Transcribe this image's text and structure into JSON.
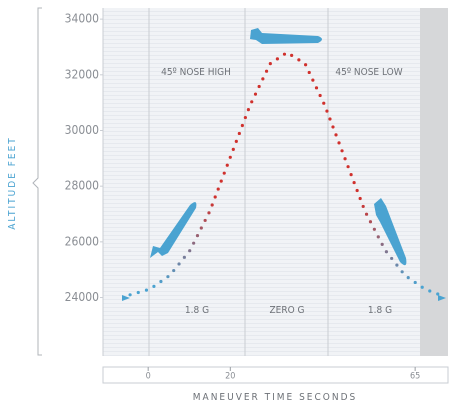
{
  "chart_data": {
    "type": "line",
    "y_label": "ALTITUDE FEET",
    "x_label": "MANEUVER TIME SECONDS",
    "x": [
      -4.4,
      0.4,
      5.3,
      10.2,
      15.0,
      19.9,
      24.8,
      29.7,
      33.8,
      38.2,
      43.0,
      47.9,
      52.8,
      57.7,
      62.5,
      67.4,
      71.0
    ],
    "values": [
      24100,
      24300,
      24800,
      25700,
      27100,
      29000,
      30900,
      32400,
      32800,
      32400,
      30900,
      29000,
      27100,
      25700,
      24800,
      24300,
      24100
    ],
    "color": "#d0312d",
    "low_color": "#4aa3d1",
    "xlim": [
      -11,
      73
    ],
    "xticks": [
      0,
      20,
      65
    ],
    "ylim": [
      21900,
      34400
    ],
    "yticks": [
      24000,
      26000,
      28000,
      30000,
      32000,
      34000
    ],
    "annotations": [
      "45º NOSE HIGH",
      "45º NOSE LOW",
      "1.8 G",
      "ZERO G",
      "1.8 G"
    ]
  }
}
